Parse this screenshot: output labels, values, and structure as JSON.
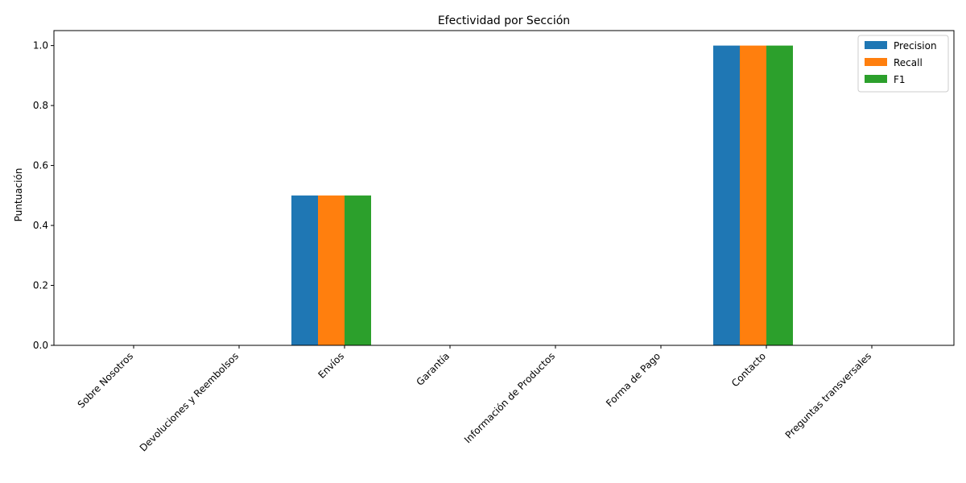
{
  "chart_data": {
    "type": "bar",
    "title": "Efectividad por Sección",
    "xlabel": "",
    "ylabel": "Puntuación",
    "categories": [
      "Sobre Nosotros",
      "Devoluciones y Reembolsos",
      "Envíos",
      "Garantía",
      "Información de Productos",
      "Forma de Pago",
      "Contacto",
      "Preguntas transversales"
    ],
    "series": [
      {
        "name": "Precision",
        "color": "#1f77b4",
        "values": [
          0,
          0,
          0.5,
          0,
          0,
          0,
          1.0,
          0
        ]
      },
      {
        "name": "Recall",
        "color": "#ff7f0e",
        "values": [
          0,
          0,
          0.5,
          0,
          0,
          0,
          1.0,
          0
        ]
      },
      {
        "name": "F1",
        "color": "#2ca02c",
        "values": [
          0,
          0,
          0.5,
          0,
          0,
          0,
          1.0,
          0
        ]
      }
    ],
    "ylim": [
      0,
      1.05
    ],
    "yticks": [
      "0.0",
      "0.2",
      "0.4",
      "0.6",
      "0.8",
      "1.0"
    ],
    "grid": false,
    "legend_position": "top-right"
  }
}
